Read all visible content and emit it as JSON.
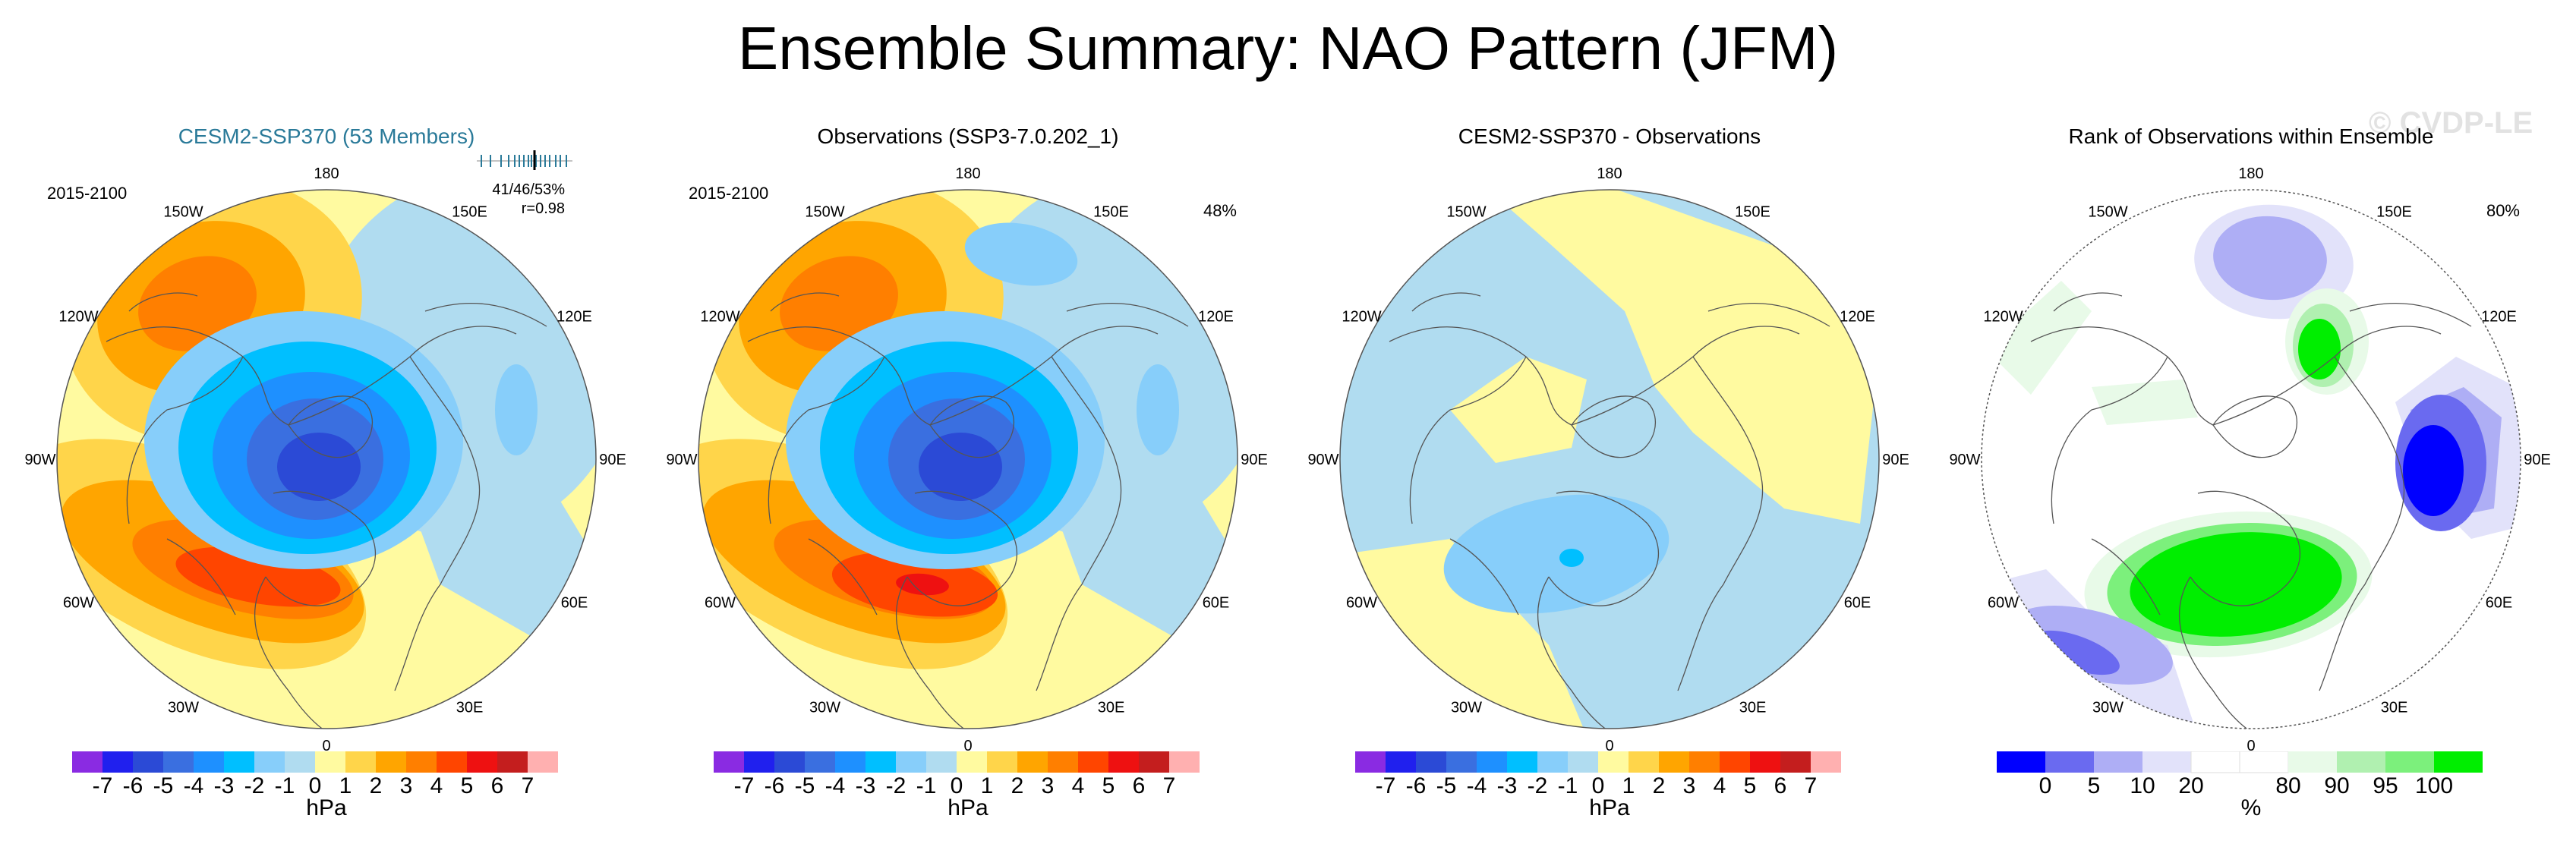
{
  "title": "Ensemble Summary: NAO Pattern (JFM)",
  "watermark": "© CVDP-LE",
  "colorbars": {
    "pressure": {
      "colors": [
        "#8a2be2",
        "#2020ee",
        "#2b4ad6",
        "#3a6fe0",
        "#1e90ff",
        "#00bfff",
        "#87cefa",
        "#b0dcf0",
        "#fffaa0",
        "#ffd54a",
        "#ffa500",
        "#ff7f00",
        "#ff4500",
        "#ee1111",
        "#c41e1e",
        "#ffb0b0"
      ],
      "labels": [
        "-7",
        "-6",
        "-5",
        "-4",
        "-3",
        "-2",
        "-1",
        "0",
        "1",
        "2",
        "3",
        "4",
        "5",
        "6",
        "7"
      ],
      "unit": "hPa"
    },
    "rank": {
      "colors": [
        "#0000ff",
        "#6a6af0",
        "#aeaef5",
        "#e2e2fa",
        "#ffffff",
        "#ffffff",
        "#e8fae8",
        "#b0f0b0",
        "#7cf07c",
        "#00ee00"
      ],
      "labels": [
        "0",
        "5",
        "10",
        "20",
        "80",
        "90",
        "95",
        "100"
      ],
      "unit": "%"
    }
  },
  "panels": [
    {
      "title": "CESM2-SSP370 (53 Members)",
      "period": "2015-2100",
      "stats_line1": "41/46/53%",
      "stats_line2": "r=0.98",
      "pct": "",
      "colorbar": "pressure",
      "field": "model"
    },
    {
      "title": "Observations (SSP3-7.0.202_1)",
      "period": "2015-2100",
      "stats_line1": "",
      "stats_line2": "",
      "pct": "48%",
      "colorbar": "pressure",
      "field": "obs"
    },
    {
      "title": "CESM2-SSP370 - Observations",
      "period": "",
      "stats_line1": "",
      "stats_line2": "",
      "pct": "",
      "colorbar": "pressure",
      "field": "diff"
    },
    {
      "title": "Rank of Observations within Ensemble",
      "period": "",
      "stats_line1": "",
      "stats_line2": "",
      "pct": "80%",
      "colorbar": "rank",
      "field": "rank"
    }
  ],
  "lon_labels": [
    "180",
    "150E",
    "120E",
    "90E",
    "60E",
    "30E",
    "0",
    "30W",
    "60W",
    "90W",
    "120W",
    "150W"
  ]
}
